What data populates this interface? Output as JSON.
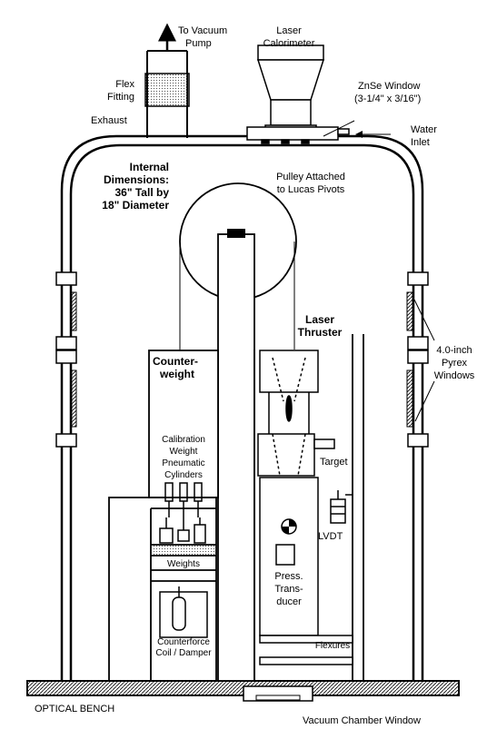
{
  "labels": {
    "to_vacuum_pump_1": "To Vacuum",
    "to_vacuum_pump_2": "Pump",
    "laser_calorimeter_1": "Laser",
    "laser_calorimeter_2": "Calorimeter",
    "flex_fitting_1": "Flex",
    "flex_fitting_2": "Fitting",
    "exhaust": "Exhaust",
    "znse_window_1": "ZnSe Window",
    "znse_window_2": "(3-1/4\" x 3/16\")",
    "water_inlet_1": "Water",
    "water_inlet_2": "Inlet",
    "internal_dims_1": "Internal",
    "internal_dims_2": "Dimensions:",
    "internal_dims_3": "36\" Tall by",
    "internal_dims_4": "18\" Diameter",
    "pulley_1": "Pulley Attached",
    "pulley_2": "to Lucas Pivots",
    "laser_thruster_1": "Laser",
    "laser_thruster_2": "Thruster",
    "pyrex_1": "4.0-inch",
    "pyrex_2": "Pyrex",
    "pyrex_3": "Windows",
    "counterweight_1": "Counter-",
    "counterweight_2": "weight",
    "calibration_1": "Calibration",
    "calibration_2": "Weight",
    "calibration_3": "Pneumatic",
    "calibration_4": "Cylinders",
    "target": "Target",
    "lvdt": "LVDT",
    "weights": "Weights",
    "press_1": "Press.",
    "press_2": "Trans-",
    "press_3": "ducer",
    "counterforce_1": "Counterforce",
    "counterforce_2": "Coil / Damper",
    "flexures": "Flexures",
    "optical_bench": "OPTICAL BENCH",
    "vacuum_chamber_window": "Vacuum Chamber Window"
  }
}
